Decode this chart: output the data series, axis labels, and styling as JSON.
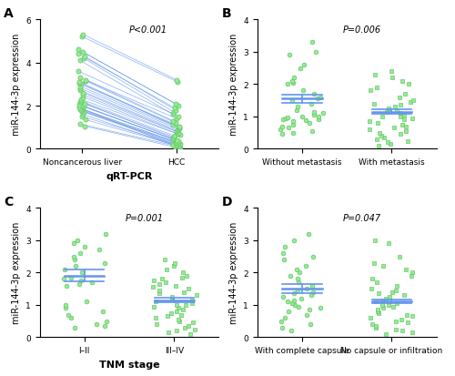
{
  "panel_A": {
    "title": "A",
    "xlabel": "qRT-PCR",
    "ylabel": "miR-144-3p expression",
    "pvalue": "P<0.001",
    "ylim": [
      0,
      6
    ],
    "yticks": [
      0,
      2,
      4,
      6
    ],
    "xtick_labels": [
      "Noncancerous liver",
      "HCC"
    ],
    "noncancerous": [
      1.9,
      1.05,
      1.15,
      1.35,
      1.5,
      1.6,
      1.7,
      1.75,
      1.8,
      1.85,
      1.9,
      1.95,
      2.0,
      2.05,
      2.1,
      2.15,
      2.2,
      2.3,
      2.4,
      2.5,
      2.6,
      2.7,
      2.8,
      2.9,
      3.0,
      3.05,
      3.1,
      3.15,
      3.2,
      3.3,
      3.6,
      4.1,
      4.2,
      4.3,
      4.4,
      4.5,
      4.6,
      5.2,
      5.3
    ],
    "hcc": [
      0.05,
      0.08,
      0.1,
      0.12,
      0.15,
      0.18,
      0.2,
      0.22,
      0.25,
      0.28,
      0.3,
      0.35,
      0.4,
      0.45,
      0.5,
      0.55,
      0.6,
      0.65,
      0.7,
      0.75,
      0.8,
      0.85,
      0.9,
      0.95,
      1.0,
      1.05,
      1.1,
      1.2,
      1.3,
      1.4,
      1.5,
      1.6,
      1.7,
      1.8,
      1.9,
      2.0,
      2.1,
      3.1,
      3.2
    ],
    "dot_color": "#90EE90",
    "line_color": "#6495ED"
  },
  "panel_B": {
    "title": "B",
    "ylabel": "miR-144-3p expression",
    "pvalue": "P=0.006",
    "ylim": [
      0,
      4
    ],
    "yticks": [
      0,
      1,
      2,
      3,
      4
    ],
    "xtick_labels": [
      "Without metastasis",
      "With metastasis"
    ],
    "group1_dots": [
      0.45,
      0.5,
      0.55,
      0.6,
      0.65,
      0.7,
      0.75,
      0.8,
      0.85,
      0.88,
      0.9,
      0.92,
      0.95,
      0.98,
      1.0,
      1.0,
      1.05,
      1.1,
      1.15,
      1.2,
      1.3,
      1.4,
      1.5,
      1.55,
      1.6,
      1.7,
      1.8,
      2.0,
      2.05,
      2.1,
      2.2,
      2.5,
      2.6,
      2.9,
      3.0,
      3.3
    ],
    "group2_dots": [
      0.1,
      0.15,
      0.2,
      0.25,
      0.3,
      0.35,
      0.4,
      0.45,
      0.5,
      0.55,
      0.6,
      0.65,
      0.7,
      0.75,
      0.8,
      0.85,
      0.9,
      0.95,
      1.0,
      1.0,
      1.05,
      1.1,
      1.15,
      1.2,
      1.25,
      1.3,
      1.35,
      1.4,
      1.45,
      1.5,
      1.6,
      1.7,
      1.8,
      1.9,
      2.0,
      2.1,
      2.2,
      2.3,
      2.4
    ],
    "group1_mean": 1.55,
    "group1_sem": 0.12,
    "group2_mean": 1.15,
    "group2_sem": 0.07,
    "dot_color": "#90EE90",
    "line_color": "#6495ED",
    "marker1": "o",
    "marker2": "s"
  },
  "panel_C": {
    "title": "C",
    "xlabel": "TNM stage",
    "ylabel": "miR-144-3p expression",
    "pvalue": "P=0.001",
    "ylim": [
      0,
      4
    ],
    "yticks": [
      0,
      1,
      2,
      3,
      4
    ],
    "xtick_labels": [
      "I–II",
      "III–IV"
    ],
    "group1_dots": [
      0.3,
      0.35,
      0.4,
      0.5,
      0.6,
      0.7,
      0.8,
      0.9,
      1.0,
      1.1,
      1.6,
      1.65,
      1.7,
      1.75,
      1.8,
      1.85,
      2.0,
      2.1,
      2.2,
      2.3,
      2.4,
      2.5,
      2.6,
      2.7,
      2.8,
      2.9,
      3.0,
      3.2
    ],
    "group2_dots": [
      0.1,
      0.15,
      0.2,
      0.25,
      0.3,
      0.35,
      0.4,
      0.45,
      0.5,
      0.55,
      0.6,
      0.65,
      0.7,
      0.75,
      0.8,
      0.85,
      0.9,
      0.95,
      1.0,
      1.0,
      1.05,
      1.1,
      1.15,
      1.2,
      1.25,
      1.3,
      1.35,
      1.4,
      1.45,
      1.5,
      1.55,
      1.6,
      1.65,
      1.7,
      1.75,
      1.8,
      1.85,
      1.9,
      2.0,
      2.1,
      2.2,
      2.3,
      2.4
    ],
    "group1_mean": 1.9,
    "group1_sem": 0.18,
    "group2_mean": 1.15,
    "group2_sem": 0.06,
    "dot_color": "#90EE90",
    "line_color": "#6495ED",
    "marker1": "o",
    "marker2": "s"
  },
  "panel_D": {
    "title": "D",
    "ylabel": "miR-144-3p expression",
    "pvalue": "P=0.047",
    "ylim": [
      0,
      4
    ],
    "yticks": [
      0,
      1,
      2,
      3,
      4
    ],
    "xtick_labels": [
      "With complete capsule",
      "No capsule or infiltration"
    ],
    "group1_dots": [
      0.2,
      0.3,
      0.4,
      0.5,
      0.6,
      0.7,
      0.8,
      0.85,
      0.9,
      0.95,
      1.0,
      1.05,
      1.1,
      1.15,
      1.2,
      1.25,
      1.3,
      1.35,
      1.4,
      1.45,
      1.5,
      1.6,
      1.7,
      1.8,
      1.9,
      2.0,
      2.1,
      2.2,
      2.4,
      2.5,
      2.6,
      2.8,
      3.0,
      3.2
    ],
    "group2_dots": [
      0.1,
      0.15,
      0.2,
      0.25,
      0.3,
      0.35,
      0.4,
      0.45,
      0.5,
      0.55,
      0.6,
      0.65,
      0.7,
      0.75,
      0.8,
      0.85,
      0.9,
      0.95,
      1.0,
      1.0,
      1.05,
      1.1,
      1.15,
      1.2,
      1.25,
      1.3,
      1.35,
      1.4,
      1.45,
      1.5,
      1.6,
      1.7,
      1.8,
      1.9,
      2.0,
      2.1,
      2.2,
      2.3,
      2.5,
      2.9,
      3.0
    ],
    "group1_mean": 1.5,
    "group1_sem": 0.14,
    "group2_mean": 1.1,
    "group2_sem": 0.06,
    "dot_color": "#90EE90",
    "line_color": "#6495ED",
    "marker1": "o",
    "marker2": "s"
  },
  "bg_color": "#ffffff",
  "font_size": 7,
  "title_fontsize": 10,
  "label_fontsize": 8,
  "tick_fontsize": 6.5
}
